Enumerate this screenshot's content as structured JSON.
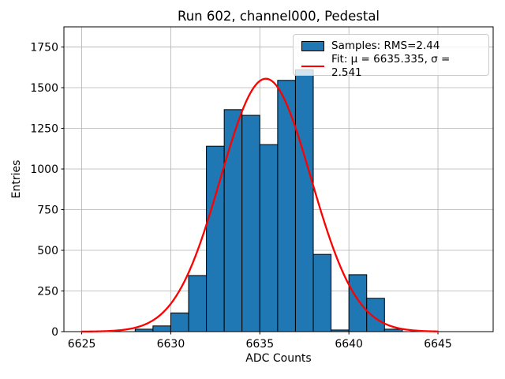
{
  "figure": {
    "title": "Run 602, channel000, Pedestal",
    "xlabel": "ADC Counts",
    "ylabel": "Entries"
  },
  "legend": {
    "samples_label": "Samples: RMS=2.44",
    "fit_label": "Fit: μ = 6635.335, σ = 2.541"
  },
  "colors": {
    "bar_fill": "#1f77b4",
    "bar_edge": "#000000",
    "fit_line": "#ff0000",
    "grid": "#b0b0b0",
    "spine": "#000000",
    "legend_border": "#cccccc",
    "background": "#ffffff"
  },
  "chart_data": {
    "type": "bar",
    "subtype": "histogram",
    "title": "Run 602, channel000, Pedestal",
    "xlabel": "ADC Counts",
    "ylabel": "Entries",
    "grid": true,
    "legend_position": "upper right",
    "bin_width": 1,
    "bin_edges": [
      6628,
      6629,
      6630,
      6631,
      6632,
      6633,
      6634,
      6635,
      6636,
      6637,
      6638,
      6639,
      6640,
      6641,
      6642,
      6643
    ],
    "values": [
      15,
      35,
      115,
      345,
      1140,
      1365,
      1330,
      1150,
      1545,
      1610,
      475,
      10,
      350,
      205,
      15
    ],
    "series_name": "Samples: RMS=2.44",
    "rms": 2.44,
    "fit": {
      "name": "Fit: μ = 6635.335, σ = 2.541",
      "mu": 6635.335,
      "sigma": 2.541,
      "peak": 1555,
      "x_range": [
        6625,
        6645
      ]
    },
    "xticks": [
      6625,
      6630,
      6635,
      6640,
      6645
    ],
    "yticks": [
      0,
      250,
      500,
      750,
      1000,
      1250,
      1500,
      1750
    ],
    "xlim": [
      6624.0,
      6648.1
    ],
    "ylim": [
      0,
      1874
    ]
  }
}
